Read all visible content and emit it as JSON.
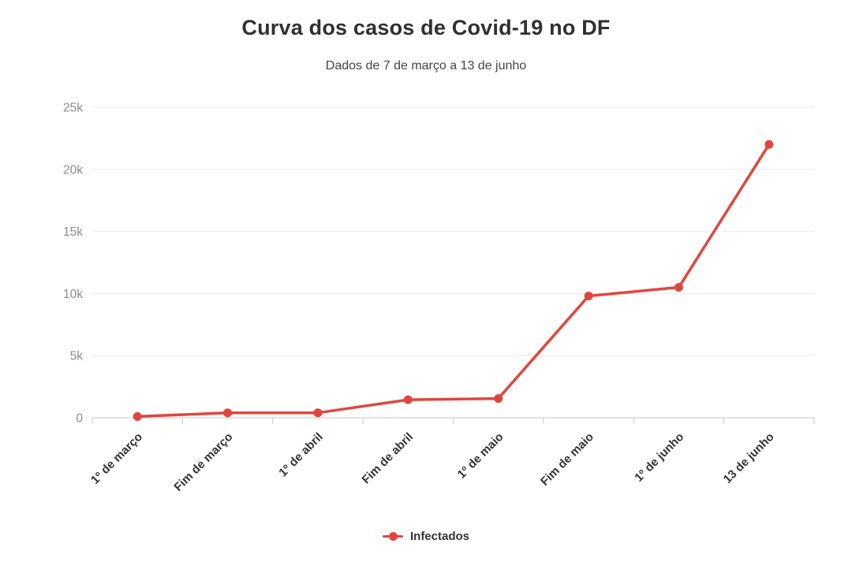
{
  "chart_data": {
    "type": "line",
    "title": "Curva dos casos de Covid-19 no DF",
    "subtitle": "Dados de 7 de março a 13 de junho",
    "categories": [
      "1º de março",
      "Fim de março",
      "1º de abril",
      "Fim de abril",
      "1º de maio",
      "Fim de maio",
      "1º de junho",
      "13 de junho"
    ],
    "series": [
      {
        "name": "Infectados",
        "color": "#e0463e",
        "values": [
          100,
          400,
          400,
          1450,
          1550,
          9800,
          10500,
          22000
        ]
      }
    ],
    "xlabel": "",
    "ylabel": "",
    "ylim": [
      0,
      25000
    ],
    "yticks": [
      {
        "value": 0,
        "label": "0"
      },
      {
        "value": 5000,
        "label": "5k"
      },
      {
        "value": 10000,
        "label": "10k"
      },
      {
        "value": 15000,
        "label": "15k"
      },
      {
        "value": 20000,
        "label": "20k"
      },
      {
        "value": 25000,
        "label": "25k"
      }
    ],
    "grid": true,
    "legend_position": "bottom"
  },
  "legend": {
    "items": [
      {
        "label": "Infectados",
        "color": "#e0463e"
      }
    ]
  },
  "colors": {
    "line": "#e0463e",
    "grid": "#e9e9e9",
    "axis": "#c9c9c9",
    "y_tick_text": "#8c8c8c",
    "x_tick_text": "#333333",
    "title": "#303030",
    "subtitle": "#454545",
    "background": "#ffffff"
  }
}
